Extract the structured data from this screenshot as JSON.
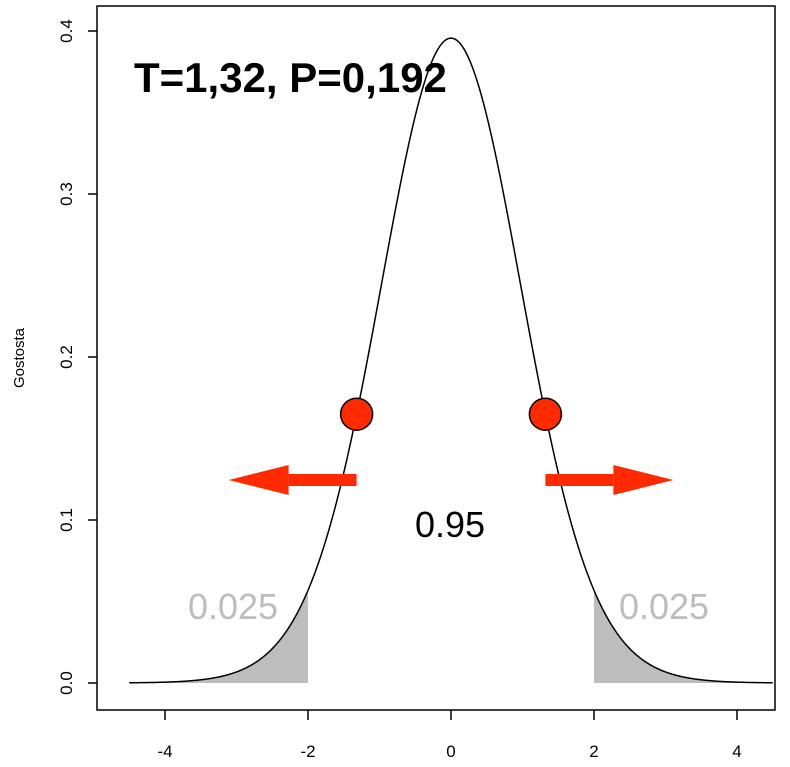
{
  "chart_data": {
    "type": "area",
    "distribution": "t",
    "degrees_of_freedom": 30,
    "ylabel": "Gostosta",
    "xlabel": "",
    "xlim": [
      -4.5,
      4.5
    ],
    "ylim": [
      0,
      0.4
    ],
    "x_ticks": [
      -4,
      -2,
      0,
      2,
      4
    ],
    "x_tick_labels": [
      "-4",
      "-2",
      "0",
      "2",
      "4"
    ],
    "y_ticks": [
      0.0,
      0.1,
      0.2,
      0.3,
      0.4
    ],
    "y_tick_labels": [
      "0.0",
      "0.1",
      "0.2",
      "0.3",
      "0.4"
    ],
    "critical_values": [
      -2.0,
      2.0
    ],
    "observed_t": [
      -1.32,
      1.32
    ],
    "title": "T=1,32, P=0,192",
    "center_probability": "0.95",
    "tail_probabilities": [
      "0.025",
      "0.025"
    ],
    "colors": {
      "curve": "#000000",
      "tail_fill": "#bdbdbd",
      "tail_text": "#bdbdbd",
      "marker": "#ff2a00",
      "arrow": "#ff2a00"
    }
  }
}
